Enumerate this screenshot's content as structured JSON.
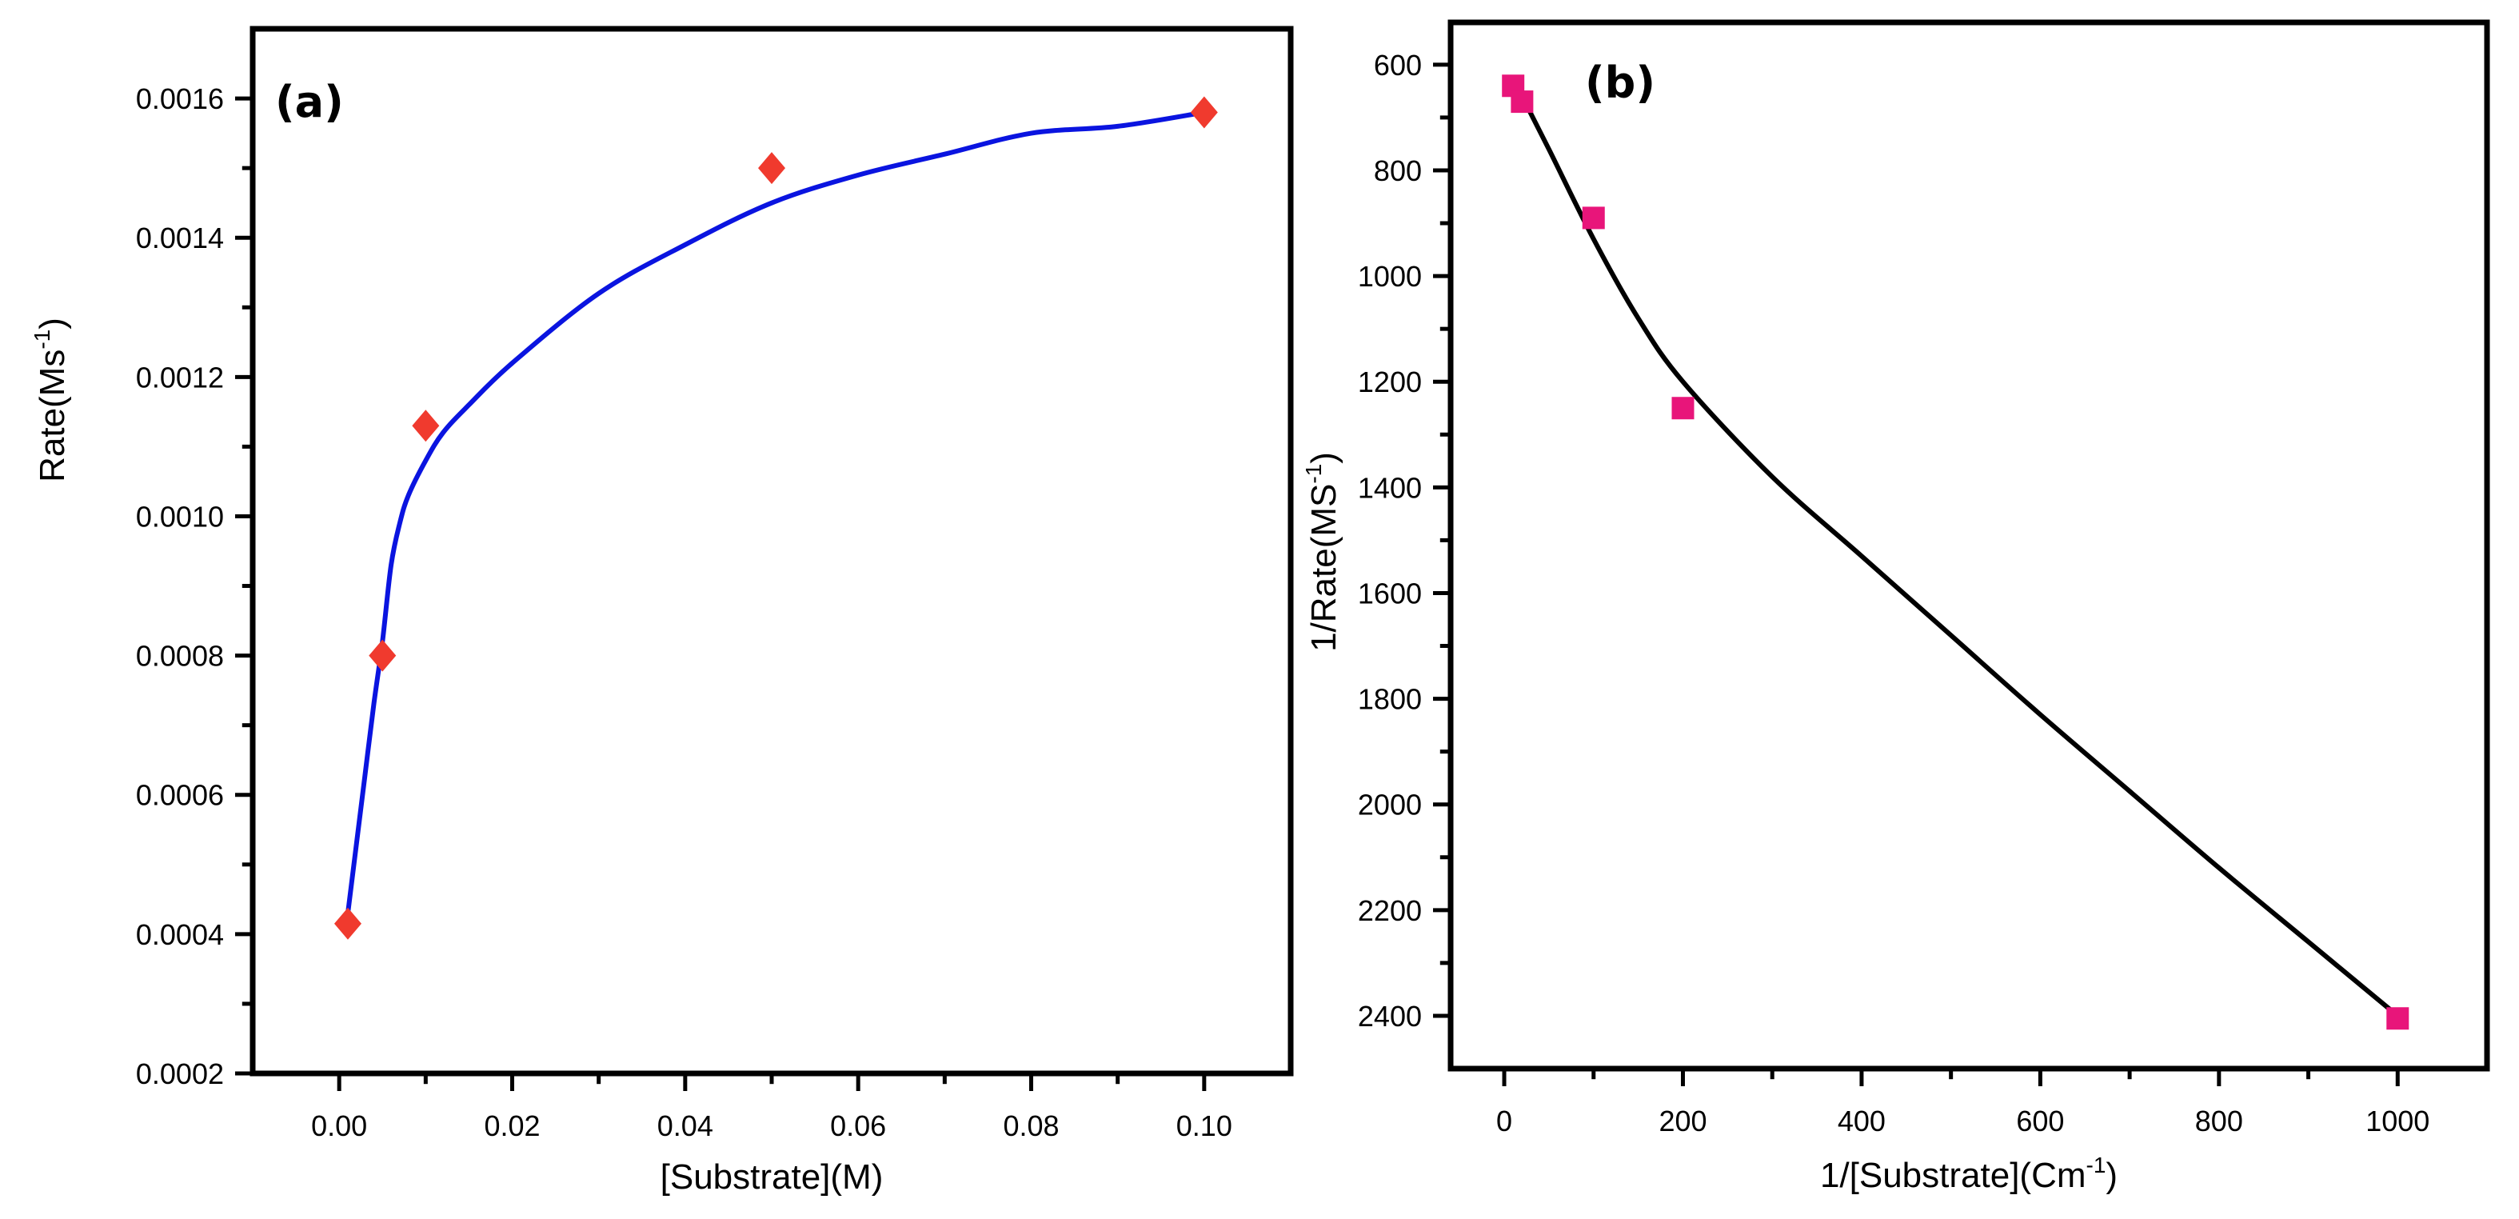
{
  "chart_data": [
    {
      "type": "scatter",
      "panel_label": "(a)",
      "xlabel": "[Substrate](M)",
      "ylabel_main": "Rate(Ms",
      "ylabel_sup": "-1",
      "ylabel_close": ")",
      "xlim": [
        -0.01,
        0.11
      ],
      "ylim": [
        0.0002,
        0.0017
      ],
      "xticks": [
        0.0,
        0.02,
        0.04,
        0.06,
        0.08,
        0.1
      ],
      "xtick_labels": [
        "0.00",
        "0.02",
        "0.04",
        "0.06",
        "0.08",
        "0.10"
      ],
      "yticks": [
        0.0002,
        0.0004,
        0.0006,
        0.0008,
        0.001,
        0.0012,
        0.0014,
        0.0016
      ],
      "ytick_labels": [
        "0.0002",
        "0.0004",
        "0.0006",
        "0.0008",
        "0.0010",
        "0.0012",
        "0.0014",
        "0.0016"
      ],
      "points": {
        "marker": "diamond",
        "color": "#f03a2e",
        "x": [
          0.001,
          0.005,
          0.01,
          0.05,
          0.1
        ],
        "y": [
          0.000415,
          0.0008,
          0.00113,
          0.0015,
          0.00158
        ]
      },
      "fit": {
        "color": "#0a14e0",
        "x": [
          0.001,
          0.002,
          0.003,
          0.004,
          0.005,
          0.006,
          0.007,
          0.008,
          0.01,
          0.012,
          0.015,
          0.02,
          0.03,
          0.04,
          0.05,
          0.06,
          0.07,
          0.08,
          0.09,
          0.1
        ],
        "y": [
          0.00043,
          0.00053,
          0.00063,
          0.00073,
          0.00082,
          0.00093,
          0.00099,
          0.00103,
          0.00108,
          0.00112,
          0.00116,
          0.00122,
          0.00132,
          0.00139,
          0.00145,
          0.00149,
          0.00152,
          0.00155,
          0.00156,
          0.00158
        ]
      }
    },
    {
      "type": "scatter",
      "panel_label": "(b)",
      "xlabel_main": "1/[Substrate](Cm",
      "xlabel_sup": "-1",
      "xlabel_close": ")",
      "ylabel_main": "1/Rate(MS",
      "ylabel_sup": "-1",
      "ylabel_close": ")",
      "y_inverted": true,
      "xlim": [
        -60,
        1100
      ],
      "ylim": [
        520,
        2500
      ],
      "xticks": [
        0,
        200,
        400,
        600,
        800,
        1000
      ],
      "xtick_labels": [
        "0",
        "200",
        "400",
        "600",
        "800",
        "1000"
      ],
      "yticks": [
        600,
        800,
        1000,
        1200,
        1400,
        1600,
        1800,
        2000,
        2200,
        2400
      ],
      "ytick_labels": [
        "600",
        "800",
        "1000",
        "1200",
        "1400",
        "1600",
        "1800",
        "2000",
        "2200",
        "2400"
      ],
      "points": {
        "marker": "square",
        "color": "#e8157a",
        "x": [
          10,
          20,
          100,
          200,
          1000
        ],
        "y": [
          640,
          670,
          890,
          1250,
          2405
        ]
      },
      "fit": {
        "color": "#000000",
        "x": [
          20,
          50,
          100,
          150,
          200,
          300,
          400,
          500,
          600,
          700,
          800,
          900,
          1000
        ],
        "y": [
          660,
          760,
          930,
          1080,
          1200,
          1380,
          1530,
          1680,
          1830,
          1975,
          2120,
          2260,
          2400
        ]
      }
    }
  ]
}
